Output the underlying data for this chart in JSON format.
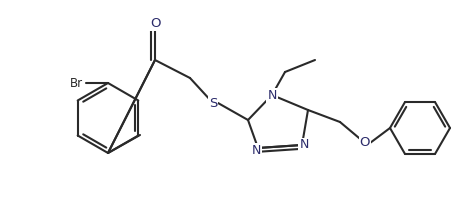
{
  "bg_color": "#ffffff",
  "line_color": "#2a2a2a",
  "label_color": "#2a2a2a",
  "atom_colors": {
    "Br": "#2a2a2a",
    "O": "#2a2a6a",
    "N": "#2a2a6a",
    "S": "#2a2a6a",
    "C": "#2a2a2a"
  },
  "figsize": [
    4.7,
    1.98
  ],
  "dpi": 100
}
